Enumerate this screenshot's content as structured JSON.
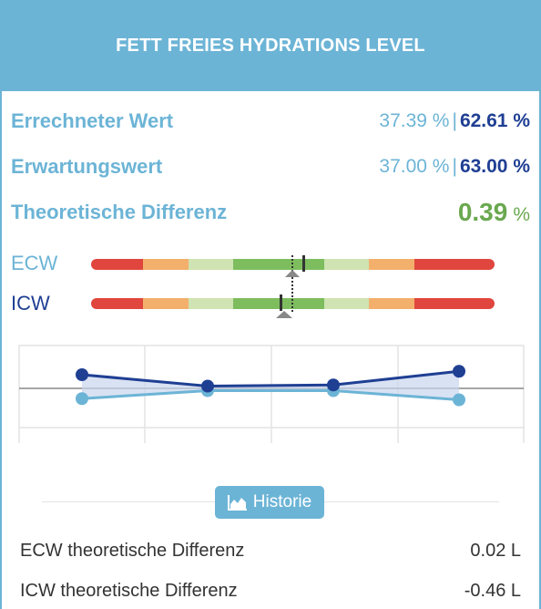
{
  "header": {
    "title": "FETT FREIES HYDRATIONS LEVEL"
  },
  "rows": [
    {
      "label": "Errechneter Wert",
      "ecw": "37.39 %",
      "sep": "|",
      "icw": "62.61 %"
    },
    {
      "label": "Erwartungswert",
      "ecw": "37.00 %",
      "sep": "|",
      "icw": "63.00 %"
    }
  ],
  "difference": {
    "label": "Theoretische Differenz",
    "value": "0.39",
    "unit": "%"
  },
  "bars": {
    "ecw_label": "ECW",
    "icw_label": "ICW",
    "ecw_label_color": "#6cb4d6",
    "icw_label_color": "#1f3f93",
    "segment_colors": [
      "#e0463e",
      "#f2b06c",
      "#cfe3b3",
      "#7dbd5e",
      "#7dbd5e",
      "#cfe3b3",
      "#f2b06c",
      "#e0463e"
    ]
  },
  "chart_data": {
    "type": "line",
    "x": [
      1,
      2,
      3,
      4
    ],
    "series": [
      {
        "values": [
          0.6,
          0.1,
          0.15,
          0.75
        ],
        "color": "#1f3f93"
      },
      {
        "values": [
          -0.45,
          -0.1,
          -0.1,
          -0.5
        ],
        "color": "#6cb4d6"
      }
    ],
    "ylim": [
      -1.5,
      1.5
    ],
    "grid": true
  },
  "history_button": {
    "label": "Historie",
    "icon": "area-chart-icon"
  },
  "details": [
    {
      "label": "ECW theoretische Differenz",
      "value": "0.02 L"
    },
    {
      "label": "ICW theoretische Differenz",
      "value": "-0.46 L"
    }
  ]
}
